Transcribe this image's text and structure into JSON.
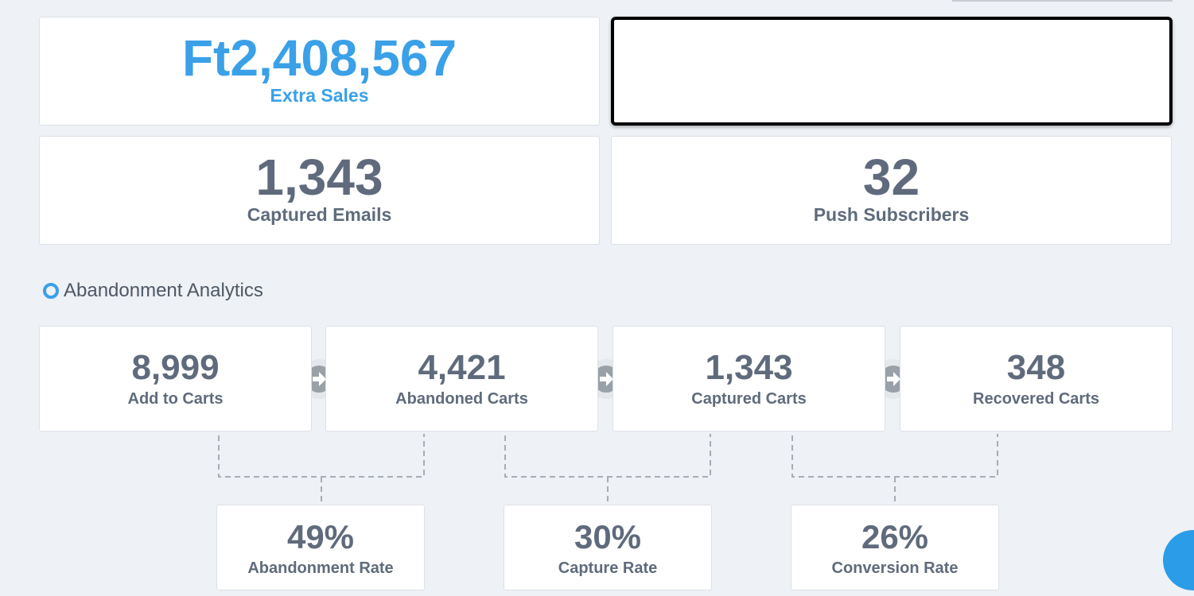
{
  "summary": [
    {
      "value": "Ft2,408,567",
      "label": "Extra Sales",
      "highlight": true
    },
    {
      "value": "1,343",
      "label": "Captured Emails"
    },
    {
      "value": "32",
      "label": "Push Subscribers"
    }
  ],
  "section_title": "Abandonment Analytics",
  "funnel": [
    {
      "value": "8,999",
      "label": "Add to Carts"
    },
    {
      "value": "4,421",
      "label": "Abandoned Carts"
    },
    {
      "value": "1,343",
      "label": "Captured Carts"
    },
    {
      "value": "348",
      "label": "Recovered Carts"
    }
  ],
  "rates": [
    {
      "value": "49%",
      "label": "Abandonment Rate"
    },
    {
      "value": "30%",
      "label": "Capture Rate"
    },
    {
      "value": "26%",
      "label": "Conversion Rate"
    }
  ]
}
